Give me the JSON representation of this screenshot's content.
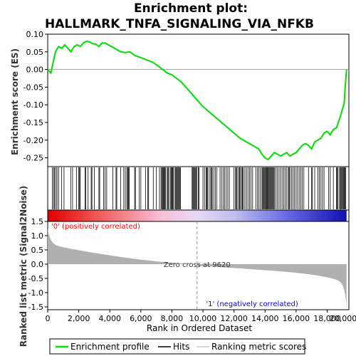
{
  "chart_data": {
    "type": "line",
    "title_line1": "Enrichment plot:",
    "title_line2": "HALLMARK_TNFA_SIGNALING_VIA_NFKB",
    "xlabel": "Rank in Ordered Dataset",
    "ylabel_top": "Enrichment score (ES)",
    "ylabel_bottom": "Ranked list metric (Signal2Noise)",
    "x_range": [
      0,
      19400
    ],
    "x_ticks": [
      0,
      2000,
      4000,
      6000,
      8000,
      10000,
      12000,
      14000,
      16000,
      18000,
      20000
    ],
    "x_tick_labels": [
      "0",
      "2,000",
      "4,000",
      "6,000",
      "8,000",
      "10,000",
      "12,000",
      "14,000",
      "16,000",
      "18,000",
      "20,000"
    ],
    "es_ylim": [
      -0.275,
      0.1
    ],
    "es_ticks": [
      0.1,
      0.05,
      0.0,
      -0.05,
      -0.1,
      -0.15,
      -0.2,
      -0.25
    ],
    "es_tick_labels": [
      "0.10",
      "0.05",
      "0.00",
      "-0.05",
      "-0.10",
      "-0.15",
      "-0.20",
      "-0.25"
    ],
    "metric_ylim": [
      -1.6,
      1.5
    ],
    "metric_ticks": [
      1.5,
      1.0,
      0.5,
      0.0,
      -0.5,
      -1.0,
      -1.5
    ],
    "metric_tick_labels": [
      "1.5",
      "1.0",
      "0.5",
      "0.0",
      "-0.5",
      "-1.0",
      "-1.5"
    ],
    "es_curve": {
      "x": [
        0,
        200,
        350,
        500,
        700,
        900,
        1100,
        1300,
        1500,
        1700,
        1900,
        2100,
        2300,
        2500,
        2700,
        2900,
        3100,
        3300,
        3500,
        3700,
        3900,
        4100,
        4300,
        4500,
        4700,
        5000,
        5300,
        5600,
        5900,
        6200,
        6500,
        6800,
        7100,
        7400,
        7700,
        8000,
        8300,
        8600,
        8900,
        9200,
        9600,
        10000,
        10400,
        10800,
        11200,
        11600,
        12000,
        12400,
        12800,
        13200,
        13600,
        13800,
        14000,
        14200,
        14400,
        14600,
        14800,
        15000,
        15200,
        15400,
        15600,
        15800,
        16000,
        16200,
        16400,
        16600,
        16800,
        17000,
        17200,
        17400,
        17600,
        17800,
        18000,
        18200,
        18400,
        18600,
        18800,
        19000,
        19100,
        19150,
        19200,
        19250
      ],
      "y": [
        0.0,
        -0.01,
        0.02,
        0.05,
        0.065,
        0.06,
        0.07,
        0.06,
        0.05,
        0.065,
        0.07,
        0.065,
        0.075,
        0.08,
        0.078,
        0.073,
        0.072,
        0.065,
        0.075,
        0.075,
        0.07,
        0.065,
        0.06,
        0.055,
        0.05,
        0.048,
        0.05,
        0.04,
        0.035,
        0.03,
        0.025,
        0.02,
        0.01,
        0.0,
        -0.01,
        -0.015,
        -0.025,
        -0.035,
        -0.05,
        -0.065,
        -0.085,
        -0.105,
        -0.12,
        -0.135,
        -0.15,
        -0.165,
        -0.18,
        -0.195,
        -0.205,
        -0.215,
        -0.225,
        -0.24,
        -0.25,
        -0.255,
        -0.245,
        -0.235,
        -0.24,
        -0.245,
        -0.24,
        -0.235,
        -0.245,
        -0.24,
        -0.235,
        -0.225,
        -0.215,
        -0.21,
        -0.215,
        -0.225,
        -0.205,
        -0.2,
        -0.195,
        -0.18,
        -0.175,
        -0.185,
        -0.17,
        -0.165,
        -0.14,
        -0.11,
        -0.095,
        -0.06,
        -0.03,
        0.0
      ]
    },
    "hits": [
      300,
      380,
      440,
      520,
      600,
      700,
      900,
      1050,
      1480,
      1600,
      1850,
      2000,
      2050,
      2100,
      2400,
      2450,
      2600,
      2800,
      2850,
      3000,
      3300,
      3350,
      3600,
      3700,
      3800,
      4200,
      4400,
      4450,
      4700,
      4900,
      5000,
      5100,
      5150,
      5200,
      5250,
      5600,
      5650,
      5900,
      6000,
      6300,
      6450,
      6500,
      6800,
      7000,
      7200,
      7300,
      7350,
      7400,
      7450,
      7500,
      7550,
      7600,
      7700,
      7750,
      7800,
      7900,
      7950,
      8000,
      8050,
      8100,
      8200,
      8250,
      8300,
      8350,
      8400,
      8450,
      8500,
      8550,
      9300,
      9350,
      9400,
      9450,
      9500,
      9550,
      9600,
      9700,
      9750,
      10000,
      10100,
      10200,
      10250,
      10300,
      10400,
      10500,
      10550,
      10600,
      10700,
      10800,
      10900,
      11100,
      11200,
      11300,
      11400,
      11500,
      11600,
      11700,
      12000,
      12100,
      12150,
      12200,
      12300,
      12350,
      12400,
      12500,
      12550,
      12600,
      12700,
      12800,
      12900,
      13000,
      13100,
      13200,
      13400,
      13500,
      13600,
      13700,
      13800,
      13850,
      13900,
      13950,
      14000,
      14050,
      14100,
      14150,
      14200,
      14250,
      14300,
      14350,
      14400,
      14450,
      14500,
      14550,
      14600,
      14700,
      14800,
      14900,
      15000,
      15100,
      15200,
      15300,
      15400,
      15500,
      15550,
      15600,
      15700,
      15800,
      15900,
      16000,
      16100,
      16200,
      16300,
      16400,
      16500,
      16800,
      17000,
      17050,
      17200,
      17400,
      17500,
      17600,
      17700,
      17800,
      18100,
      18200,
      18400,
      18600,
      18650,
      18700,
      18800,
      18850,
      18900,
      18950,
      19000,
      19050,
      19100,
      19150,
      19200
    ],
    "zero_cross_rank": 9620,
    "zero_cross_label": "Zero cross at 9620",
    "pos_label": "'0' (positively correlated)",
    "neg_label": "'1' (negatively correlated)",
    "n_genes": 19250,
    "colors": {
      "curve": "#00dd00",
      "positive_label": "#ff0000",
      "negative_label": "#0000ff",
      "metric_fill": "#b0b0b0",
      "hit": "#000000"
    }
  },
  "legend": {
    "items": [
      {
        "label": "Enrichment profile"
      },
      {
        "label": "Hits"
      },
      {
        "label": "Ranking metric scores"
      }
    ]
  }
}
